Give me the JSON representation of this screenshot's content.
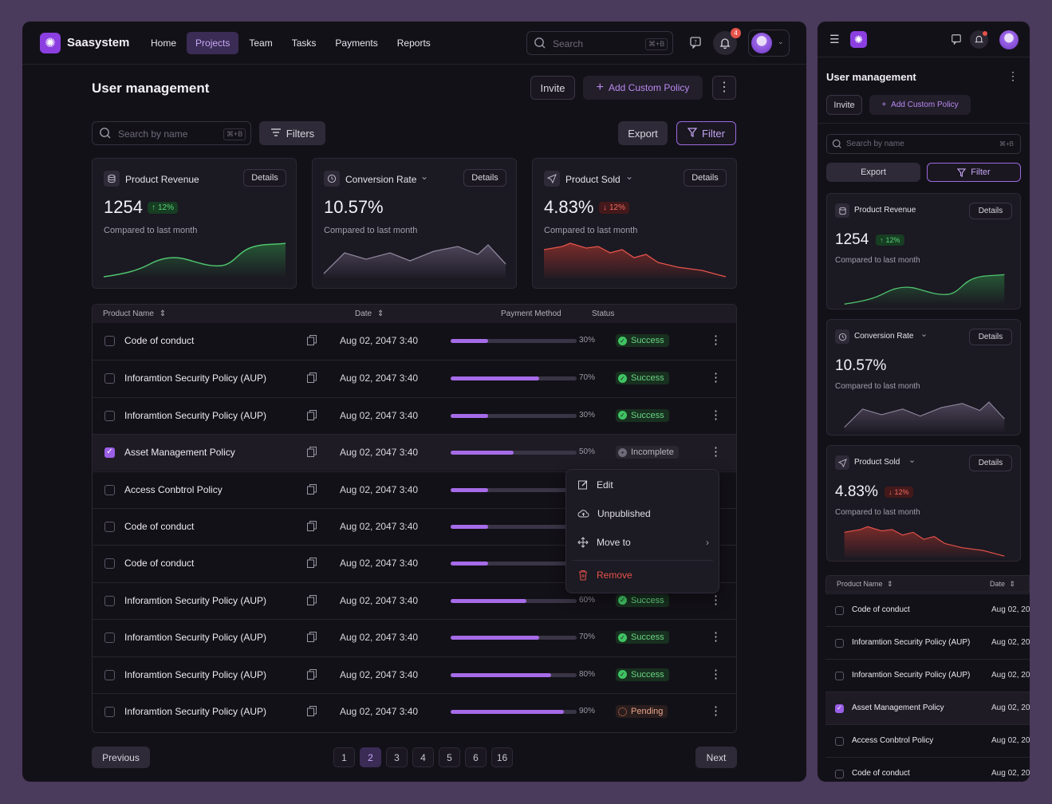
{
  "app": {
    "name": "Saasystem"
  },
  "nav": [
    {
      "label": "Home"
    },
    {
      "label": "Projects"
    },
    {
      "label": "Team"
    },
    {
      "label": "Tasks"
    },
    {
      "label": "Payments"
    },
    {
      "label": "Reports"
    }
  ],
  "search": {
    "placeholder": "Search",
    "shortcut": "⌘+B"
  },
  "notifications": {
    "count": "4"
  },
  "page": {
    "title": "User management",
    "invite_label": "Invite",
    "add_policy_label": "Add Custom Policy"
  },
  "toolbar": {
    "search_placeholder": "Search by name",
    "search_shortcut": "⌘+B",
    "filters_label": "Filters",
    "export_label": "Export",
    "filter_label": "Filter"
  },
  "stats": [
    {
      "title": "Product Revenue",
      "value": "1254",
      "change": "12%",
      "trend": "up",
      "caption": "Compared to last month",
      "details": "Details"
    },
    {
      "title": "Conversion Rate",
      "value": "10.57%",
      "caption": "Compared to last month",
      "details": "Details"
    },
    {
      "title": "Product Sold",
      "value": "4.83%",
      "change": "12%",
      "trend": "down",
      "caption": "Compared to last month",
      "details": "Details"
    }
  ],
  "table": {
    "columns": {
      "name": "Product  Name",
      "date": "Date",
      "payment": "Payment Method",
      "status": "Status"
    },
    "rows": [
      {
        "name": "Code of conduct",
        "date": "Aug 02, 2047 3:40",
        "progress": 30,
        "progress_label": "30%",
        "status": "Success",
        "checked": false
      },
      {
        "name": "Inforamtion Security Policy (AUP)",
        "date": "Aug 02, 2047 3:40",
        "progress": 70,
        "progress_label": "70%",
        "status": "Success",
        "checked": false
      },
      {
        "name": "Inforamtion Security Policy (AUP)",
        "date": "Aug 02, 2047 3:40",
        "progress": 30,
        "progress_label": "30%",
        "status": "Success",
        "checked": false
      },
      {
        "name": "Asset Management Policy",
        "date": "Aug 02, 2047 3:40",
        "progress": 50,
        "progress_label": "50%",
        "status": "Incomplete",
        "checked": true
      },
      {
        "name": "Access Conbtrol Policy",
        "date": "Aug 02, 2047 3:40",
        "progress": 30,
        "progress_label": "",
        "status": "",
        "checked": false
      },
      {
        "name": "Code of conduct",
        "date": "Aug 02, 2047 3:40",
        "progress": 30,
        "progress_label": "",
        "status": "",
        "checked": false
      },
      {
        "name": "Code of conduct",
        "date": "Aug 02, 2047 3:40",
        "progress": 30,
        "progress_label": "",
        "status": "",
        "checked": false
      },
      {
        "name": "Inforamtion Security Policy (AUP)",
        "date": "Aug 02, 2047 3:40",
        "progress": 60,
        "progress_label": "60%",
        "status": "Success",
        "checked": false
      },
      {
        "name": "Inforamtion Security Policy (AUP)",
        "date": "Aug 02, 2047 3:40",
        "progress": 70,
        "progress_label": "70%",
        "status": "Success",
        "checked": false
      },
      {
        "name": "Inforamtion Security Policy (AUP)",
        "date": "Aug 02, 2047 3:40",
        "progress": 80,
        "progress_label": "80%",
        "status": "Success",
        "checked": false
      },
      {
        "name": "Inforamtion Security Policy (AUP)",
        "date": "Aug 02, 2047 3:40",
        "progress": 90,
        "progress_label": "90%",
        "status": "Pending",
        "checked": false
      }
    ]
  },
  "context_menu": {
    "edit": "Edit",
    "unpublished": "Unpublished",
    "move_to": "Move to",
    "remove": "Remove"
  },
  "pagination": {
    "previous": "Previous",
    "next": "Next",
    "pages": [
      "1",
      "2",
      "3",
      "4",
      "5",
      "6",
      "16"
    ],
    "current": "2"
  },
  "mobile": {
    "title": "User management",
    "invite_label": "Invite",
    "add_policy_label": "Add Custom Policy",
    "search_placeholder": "Search by name",
    "search_shortcut": "⌘+B",
    "export_label": "Export",
    "filter_label": "Filter",
    "columns": {
      "name": "Product  Name",
      "date": "Date"
    },
    "rows": [
      {
        "name": "Code of conduct",
        "date": "Aug 02, 20",
        "checked": false
      },
      {
        "name": "Inforamtion Security Policy (AUP)",
        "date": "Aug 02, 20",
        "checked": false
      },
      {
        "name": "Inforamtion Security Policy (AUP)",
        "date": "Aug 02, 20",
        "checked": false
      },
      {
        "name": "Asset Management Policy",
        "date": "Aug 02, 20",
        "checked": true
      },
      {
        "name": "Access Conbtrol Policy",
        "date": "Aug 02, 20",
        "checked": false
      },
      {
        "name": "Code of conduct",
        "date": "Aug 02, 20",
        "checked": false
      }
    ]
  },
  "colors": {
    "accent": "#a66be8",
    "success": "#40c463",
    "danger": "#e5534b",
    "background": "#131118"
  }
}
